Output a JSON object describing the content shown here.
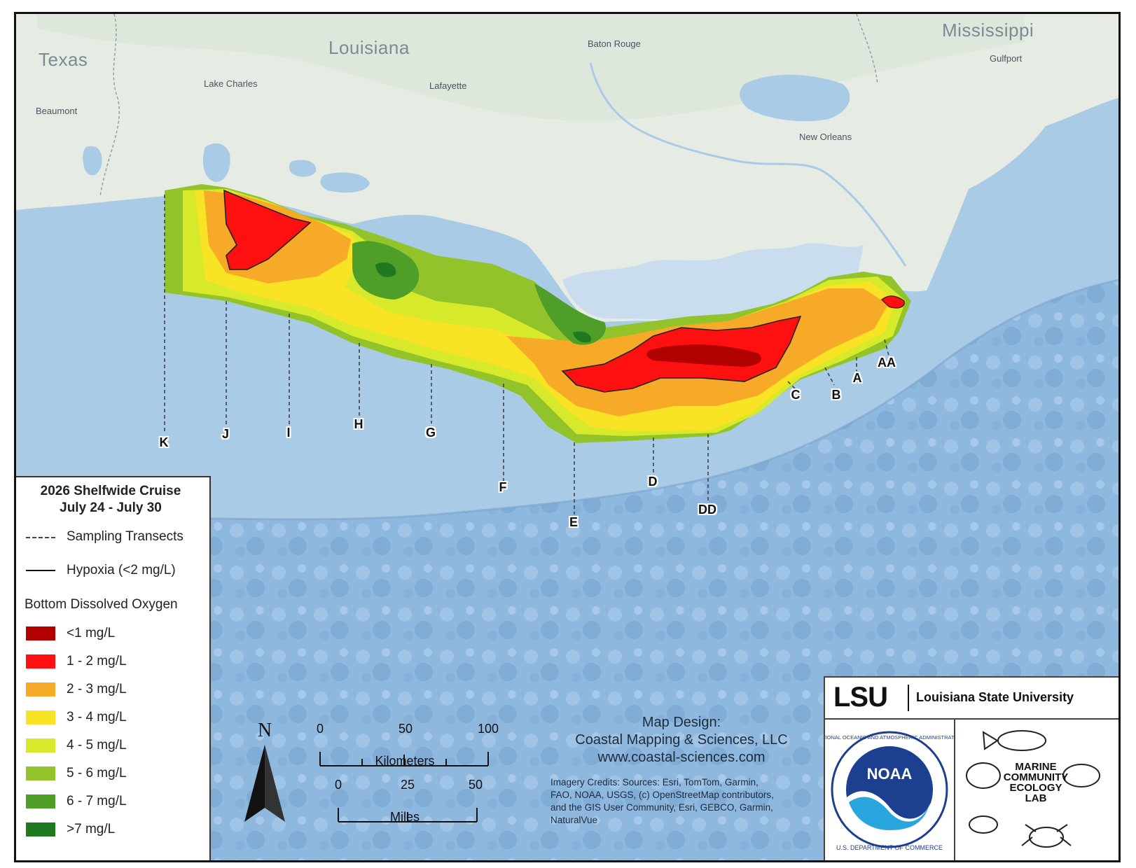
{
  "map": {
    "states": [
      "Texas",
      "Louisiana",
      "Mississippi"
    ],
    "cities": [
      "Beaumont",
      "Lake Charles",
      "Lafayette",
      "Baton Rouge",
      "New Orleans",
      "Gulfport"
    ]
  },
  "transects": [
    "K",
    "J",
    "I",
    "H",
    "G",
    "F",
    "E",
    "D",
    "DD",
    "C",
    "B",
    "A",
    "AA"
  ],
  "legend": {
    "title_line1": "2026 Shelfwide Cruise",
    "title_line2": "July 24 - July 30",
    "sampling_label": "Sampling Transects",
    "hypoxia_label": "Hypoxia (<2 mg/L)",
    "do_heading": "Bottom Dissolved Oxygen",
    "classes": [
      {
        "label": "<1 mg/L",
        "color": "#b00000"
      },
      {
        "label": "1 - 2 mg/L",
        "color": "#ff1010"
      },
      {
        "label": "2 - 3 mg/L",
        "color": "#f7a928"
      },
      {
        "label": "3 - 4 mg/L",
        "color": "#f9e325"
      },
      {
        "label": "4 - 5 mg/L",
        "color": "#d6e92a"
      },
      {
        "label": "5 - 6 mg/L",
        "color": "#93c32b"
      },
      {
        "label": "6 - 7 mg/L",
        "color": "#4e9e27"
      },
      {
        "label": ">7 mg/L",
        "color": "#1f7a1f"
      }
    ]
  },
  "north_arrow": "N",
  "scalebar": {
    "km_ticks": [
      "0",
      "50",
      "100"
    ],
    "km_label": "Kilometers",
    "mi_ticks": [
      "0",
      "25",
      "50"
    ],
    "mi_label": "Miles"
  },
  "credits": {
    "design_line1": "Map Design:",
    "design_line2": "Coastal Mapping & Sciences, LLC",
    "design_line3": "www.coastal-sciences.com",
    "imagery_lines": [
      "Imagery Credits: Sources:  Esri, TomTom, Garmin,",
      "FAO, NOAA, USGS, (c) OpenStreetMap contributors,",
      "and the GIS User Community, Esri, GEBCO, Garmin,",
      "NaturalVue"
    ]
  },
  "logos": {
    "lsu_mark": "LSU",
    "lsu_name": "Louisiana State University",
    "noaa_mark": "NOAA",
    "noaa_ring_top": "NATIONAL OCEANIC AND ATMOSPHERIC ADMINISTRATION",
    "noaa_ring_bottom": "U.S. DEPARTMENT OF COMMERCE",
    "lab_line1": "MARINE",
    "lab_line2": "COMMUNITY",
    "lab_line3": "ECOLOGY",
    "lab_line4": "LAB"
  }
}
